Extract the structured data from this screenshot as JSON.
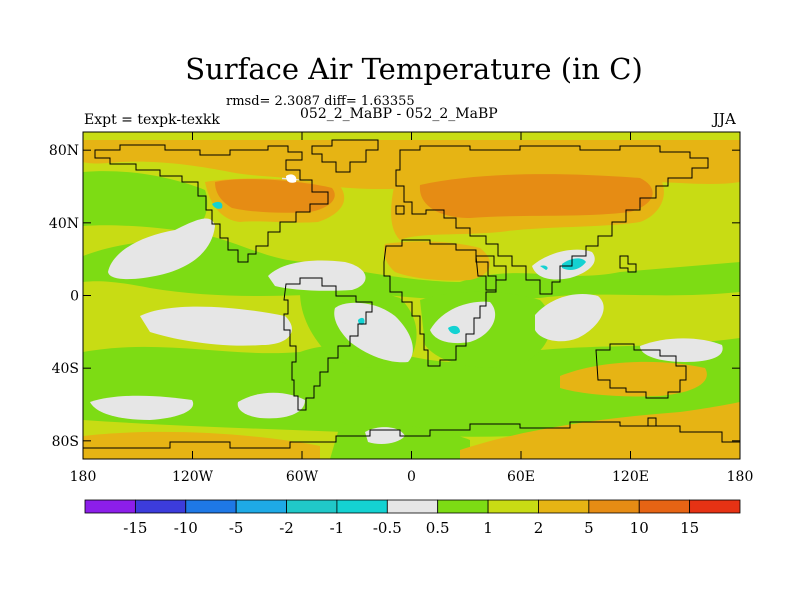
{
  "header": {
    "title": "Surface Air Temperature (in C)",
    "stats": "rmsd= 2.3087 diff= 1.63355",
    "subtitle": "052_2_MaBP - 052_2_MaBP",
    "experiment": "Expt = texpk-texkk",
    "season": "JJA"
  },
  "axes": {
    "y_ticks": [
      "80N",
      "40N",
      "0",
      "40S",
      "80S"
    ],
    "y_values": [
      80,
      40,
      0,
      -40,
      -80
    ],
    "x_ticks": [
      "180",
      "120W",
      "60W",
      "0",
      "60E",
      "120E",
      "180"
    ],
    "x_values": [
      -180,
      -120,
      -60,
      0,
      60,
      120,
      180
    ],
    "lon_range": [
      -180,
      180
    ],
    "lat_range": [
      -90,
      90
    ]
  },
  "colorbar": {
    "labels": [
      "-15",
      "-10",
      "-5",
      "-2",
      "-1",
      "-0.5",
      "0.5",
      "1",
      "2",
      "5",
      "10",
      "15"
    ],
    "colors": [
      "#8c1eea",
      "#3c3cdc",
      "#1e78e6",
      "#1eaae6",
      "#20c8c8",
      "#14d2d2",
      "#e6e6e6",
      "#7ddc14",
      "#c8dc14",
      "#e6b414",
      "#e68c14",
      "#e66414",
      "#e63214"
    ]
  },
  "field_colors": {
    "light_green": "#c8dc14",
    "green": "#7ddc14",
    "gray": "#e6e6e6",
    "gold": "#e6b414",
    "orange": "#e68c14",
    "cyan": "#14d2d2"
  }
}
